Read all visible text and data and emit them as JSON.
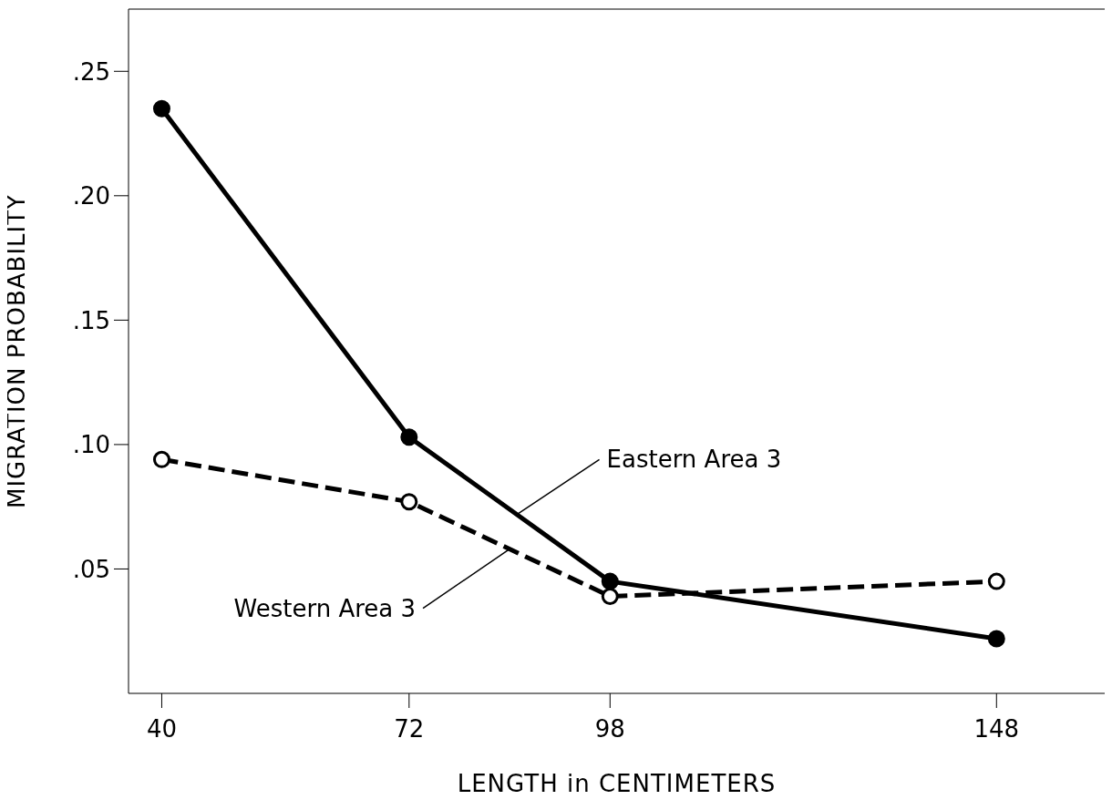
{
  "chart_data": {
    "type": "line",
    "xlabel": "LENGTH in CENTIMETERS",
    "ylabel": "MIGRATION PROBABILITY",
    "x": [
      40,
      72,
      98,
      148
    ],
    "xlim": [
      35.7,
      162
    ],
    "xticks": [
      40,
      72,
      98,
      148
    ],
    "ylim": [
      0,
      0.275
    ],
    "yticks": [
      {
        "value": 0.05,
        "label": ".05"
      },
      {
        "value": 0.1,
        "label": ".10"
      },
      {
        "value": 0.15,
        "label": ".15"
      },
      {
        "value": 0.2,
        "label": ".20"
      },
      {
        "value": 0.25,
        "label": ".25"
      }
    ],
    "grid": false,
    "legend": false,
    "marker": "circle",
    "series": [
      {
        "color": "#000000",
        "line_style": "solid",
        "values": [
          0.235,
          0.103,
          0.045,
          0.022
        ]
      },
      {
        "color": "#000000",
        "line_style": "dashed",
        "values": [
          0.094,
          0.077,
          0.039,
          0.045
        ]
      }
    ],
    "annotations": [
      {
        "text": "Eastern Area 3",
        "x": 86,
        "y": 0.072
      },
      {
        "text": "Western Area 3",
        "x": 85,
        "y": 0.058
      }
    ]
  }
}
